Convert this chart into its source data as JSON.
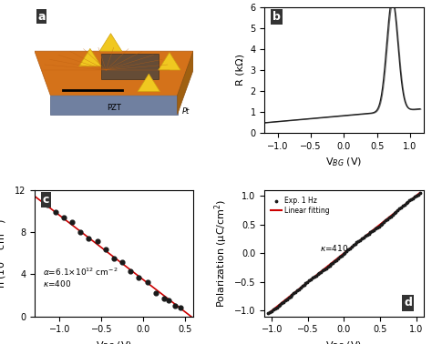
{
  "panel_b": {
    "label": "b",
    "xlabel": "V$_{BG}$ (V)",
    "ylabel": "R (kΩ)",
    "xlim": [
      -1.2,
      1.2
    ],
    "ylim": [
      0,
      6
    ],
    "yticks": [
      0,
      1,
      2,
      3,
      4,
      5,
      6
    ],
    "xticks": [
      -1.0,
      -0.5,
      0.0,
      0.5,
      1.0
    ],
    "color": "#1a1a1a"
  },
  "panel_c": {
    "label": "c",
    "xlabel": "V$_{BG}$ (V)",
    "ylabel": "n (10$^{12}$ cm$^{-2}$)",
    "xlim": [
      -1.3,
      0.6
    ],
    "ylim": [
      0,
      12
    ],
    "yticks": [
      0,
      4,
      8,
      12
    ],
    "xticks": [
      -1.0,
      -0.5,
      0.0,
      0.5
    ],
    "fit_color": "#cc0000",
    "dot_color": "#1a1a1a"
  },
  "panel_d": {
    "label": "d",
    "xlabel": "V$_{BG}$ (V)",
    "ylabel": "Polarization (μC/cm$^{2}$)",
    "xlim": [
      -1.1,
      1.1
    ],
    "ylim": [
      -1.1,
      1.1
    ],
    "yticks": [
      -1.0,
      -0.5,
      0.0,
      0.5,
      1.0
    ],
    "xticks": [
      -1.0,
      -0.5,
      0.0,
      0.5,
      1.0
    ],
    "legend_exp": "Exp. 1 Hz",
    "legend_fit": "Linear fitting",
    "fit_color": "#cc0000",
    "dot_color": "#1a1a1a"
  },
  "bg_color": "#ffffff",
  "label_fontsize": 8,
  "tick_fontsize": 7,
  "panel_label_fontsize": 9,
  "panel_a": {
    "bg_color": "#e07820",
    "top_color": "#d4721a",
    "top_edge": "#b05a10",
    "front_color": "#7080a0",
    "front_edge": "#506080",
    "side_color": "#a06010",
    "side_edge": "#8a5010",
    "line_color": "#c06010",
    "pyramid_face": "#f0c820",
    "pyramid_edge": "#d0a010",
    "mesh_face": "#404040",
    "mesh_edge": "#202020",
    "pzt_label": "PZT",
    "pt_label": "Pt"
  }
}
